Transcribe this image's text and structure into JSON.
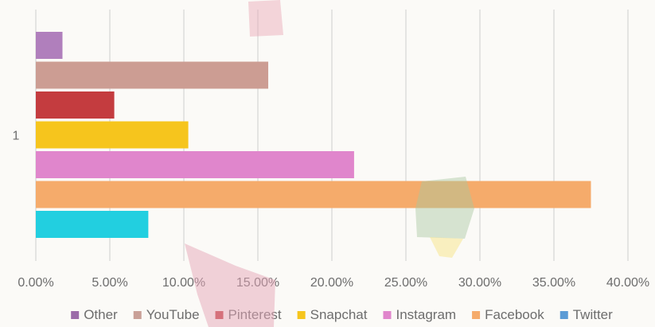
{
  "chart_data": {
    "type": "bar",
    "orientation": "horizontal",
    "categories": [
      "1"
    ],
    "xlim": [
      0,
      40
    ],
    "x_tick_labels": [
      "0.00%",
      "5.00%",
      "10.00%",
      "15.00%",
      "20.00%",
      "25.00%",
      "30.00%",
      "35.00%",
      "40.00%"
    ],
    "x_ticks": [
      0,
      5,
      10,
      15,
      20,
      25,
      30,
      35,
      40
    ],
    "grid": true,
    "legend_position": "bottom",
    "series": [
      {
        "name": "Other",
        "value": 1.8,
        "color": "#b07fbc"
      },
      {
        "name": "YouTube",
        "value": 15.7,
        "color": "#cc9d93"
      },
      {
        "name": "Pinterest",
        "value": 5.3,
        "color": "#c43c3f"
      },
      {
        "name": "Snapchat",
        "value": 10.3,
        "color": "#f6c51d"
      },
      {
        "name": "Instagram",
        "value": 21.5,
        "color": "#e086cc"
      },
      {
        "name": "Facebook",
        "value": 37.5,
        "color": "#f5ab6b"
      },
      {
        "name": "Twitter",
        "value": 7.6,
        "color": "#22cfe0"
      }
    ],
    "legend": [
      {
        "name": "Other",
        "color": "#9b6ba8"
      },
      {
        "name": "YouTube",
        "color": "#c9a097"
      },
      {
        "name": "Pinterest",
        "color": "#c43c3f"
      },
      {
        "name": "Snapchat",
        "color": "#f6c51d"
      },
      {
        "name": "Instagram",
        "color": "#e086cc"
      },
      {
        "name": "Facebook",
        "color": "#f5ab6b"
      },
      {
        "name": "Twitter",
        "color": "#5b9bd5"
      }
    ]
  }
}
